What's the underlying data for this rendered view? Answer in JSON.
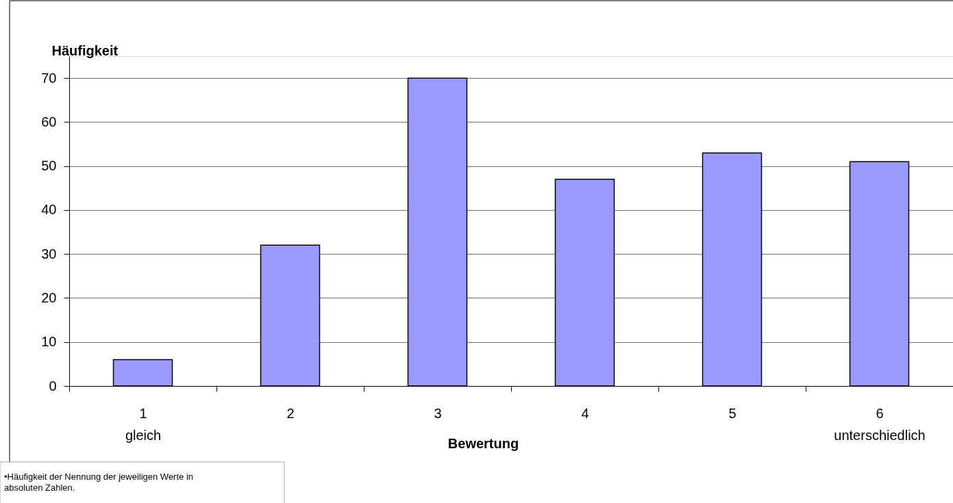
{
  "chart_data": {
    "type": "bar",
    "xlabel": "Bewertung",
    "ylabel": "Häufigkeit",
    "categories": [
      "1\ngleich",
      "2",
      "3",
      "4",
      "5",
      "6\nunterschiedlich"
    ],
    "values": [
      6,
      32,
      70,
      47,
      53,
      51
    ],
    "color": "#9999ff",
    "ylim": [
      0,
      75
    ],
    "yticks": [
      0,
      10,
      20,
      30,
      40,
      50,
      60,
      70
    ],
    "grid": "y",
    "annotations": [
      "•Häufigkeit der Nennung der jeweiligen Werte in absoluten Zahlen."
    ]
  }
}
